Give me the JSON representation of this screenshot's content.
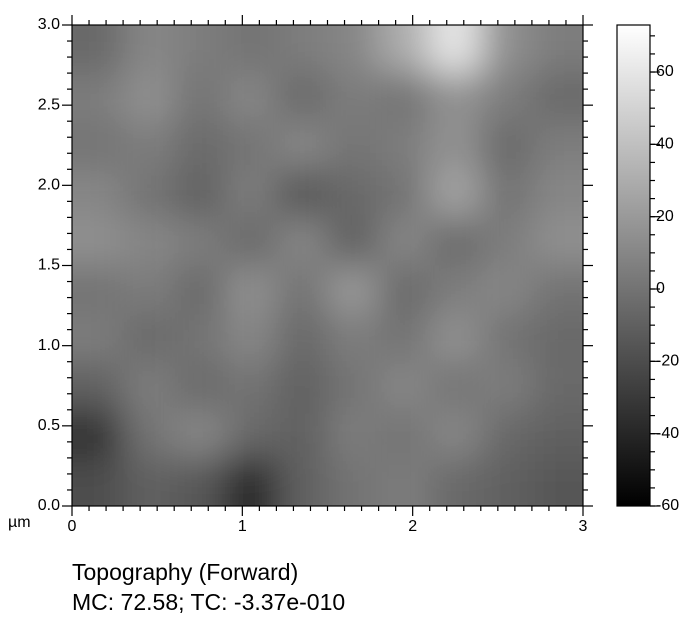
{
  "chart_data": {
    "type": "heatmap",
    "caption": "Topography (Forward)",
    "subcaption": "MC: 72.58; TC: -3.37e-010",
    "x_unit": "µm",
    "xlim": [
      0,
      3
    ],
    "xticks": [
      0,
      1,
      2,
      3
    ],
    "ylim": [
      0,
      3
    ],
    "yticks": [
      {
        "value": 0,
        "label": "0.0"
      },
      0.5,
      {
        "value": 1,
        "label": "1.0"
      },
      1.5,
      {
        "value": 2,
        "label": "2.0"
      },
      2.5,
      {
        "value": 3,
        "label": "3.0"
      }
    ],
    "zlim": [
      -60,
      73
    ],
    "zticks": [
      -60,
      -40,
      -20,
      0,
      20,
      40,
      60
    ],
    "x": [
      0.15,
      0.45,
      0.75,
      1.05,
      1.35,
      1.65,
      1.95,
      2.25,
      2.55,
      2.85
    ],
    "y": [
      0.15,
      0.45,
      0.75,
      1.05,
      1.35,
      1.65,
      1.95,
      2.25,
      2.55,
      2.85
    ],
    "z": [
      [
        -20,
        -10,
        -15,
        -40,
        -10,
        0,
        5,
        -5,
        -10,
        -15
      ],
      [
        -35,
        0,
        10,
        -5,
        -10,
        5,
        0,
        10,
        -5,
        -10
      ],
      [
        -10,
        5,
        -5,
        0,
        -10,
        0,
        10,
        0,
        5,
        -5
      ],
      [
        5,
        -5,
        0,
        10,
        -5,
        5,
        0,
        15,
        0,
        -5
      ],
      [
        0,
        5,
        -5,
        15,
        0,
        20,
        -5,
        5,
        10,
        0
      ],
      [
        15,
        10,
        5,
        -5,
        10,
        -10,
        10,
        -5,
        5,
        15
      ],
      [
        10,
        0,
        -10,
        5,
        -15,
        -5,
        0,
        25,
        0,
        10
      ],
      [
        0,
        5,
        -5,
        0,
        10,
        0,
        5,
        15,
        -5,
        5
      ],
      [
        5,
        15,
        0,
        10,
        -5,
        5,
        0,
        15,
        5,
        -5
      ],
      [
        -5,
        10,
        5,
        0,
        5,
        10,
        30,
        60,
        15,
        5
      ]
    ]
  }
}
